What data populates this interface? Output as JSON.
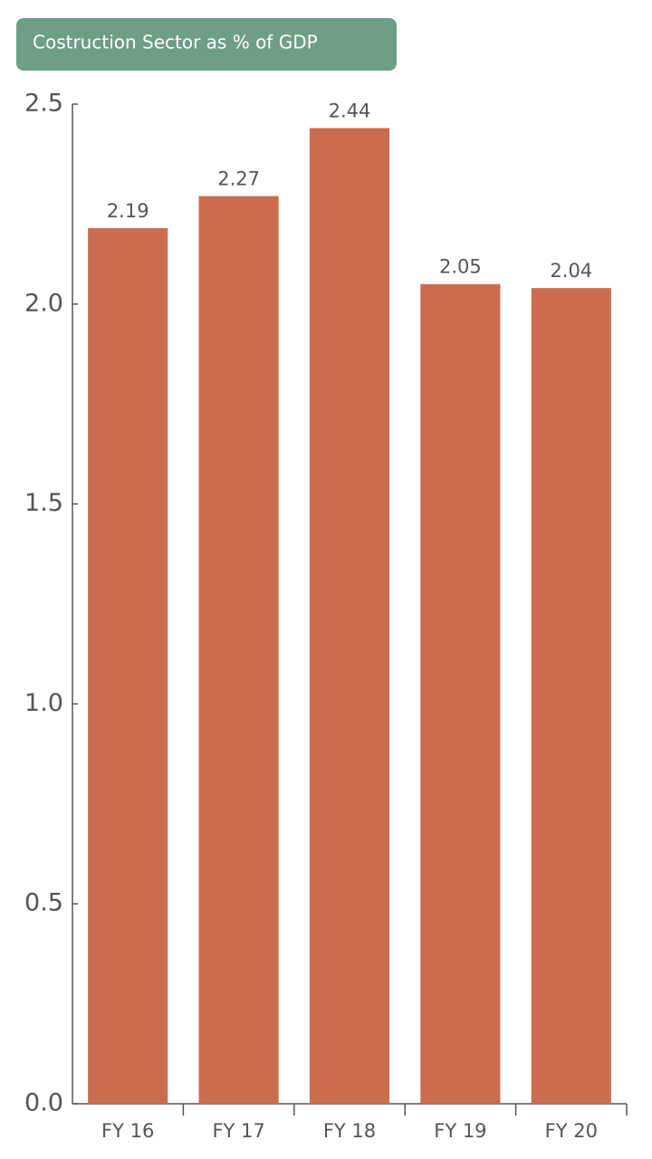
{
  "chart_data": {
    "type": "bar",
    "title": "Costruction Sector as % of GDP",
    "categories": [
      "FY 16",
      "FY 17",
      "FY 18",
      "FY 19",
      "FY 20"
    ],
    "values": [
      2.19,
      2.27,
      2.44,
      2.05,
      2.04
    ],
    "color": "#cb6c4e",
    "ylim": [
      0,
      2.5
    ],
    "yticks": [
      {
        "value": 0,
        "label": "0.0"
      },
      0.5,
      {
        "value": 1,
        "label": "1.0"
      },
      1.5,
      {
        "value": 2,
        "label": "2.0"
      },
      2.5
    ],
    "grid": false
  }
}
